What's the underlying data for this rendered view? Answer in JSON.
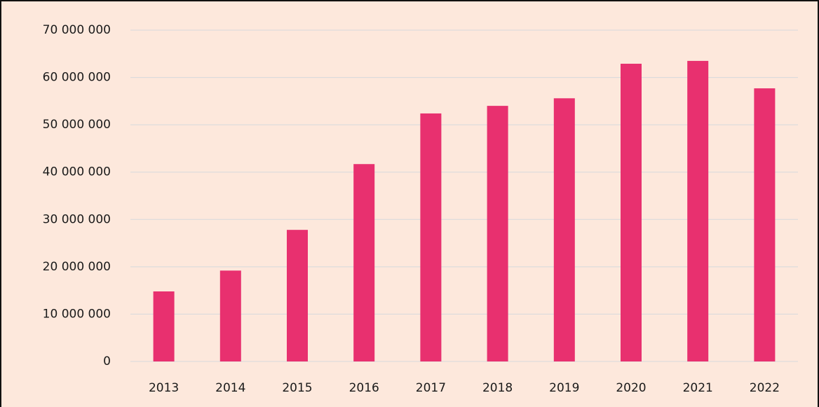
{
  "chart_data": {
    "type": "bar",
    "categories": [
      "2013",
      "2014",
      "2015",
      "2016",
      "2017",
      "2018",
      "2019",
      "2020",
      "2021",
      "2022"
    ],
    "values": [
      14800000,
      19200000,
      27800000,
      41700000,
      52400000,
      54000000,
      55600000,
      62900000,
      63500000,
      57700000
    ],
    "color": "#e8306f",
    "ylim": [
      0,
      70000000
    ],
    "yticks": [
      0,
      {
        "value": 10000000,
        "label": "10 000 000"
      },
      {
        "value": 20000000,
        "label": "20 000 000"
      },
      {
        "value": 30000000,
        "label": "30 000 000"
      },
      {
        "value": 40000000,
        "label": "40 000 000"
      },
      {
        "value": 50000000,
        "label": "50 000 000"
      },
      {
        "value": 60000000,
        "label": "60 000 000"
      },
      {
        "value": 70000000,
        "label": "70 000 000"
      }
    ],
    "grid": true
  }
}
